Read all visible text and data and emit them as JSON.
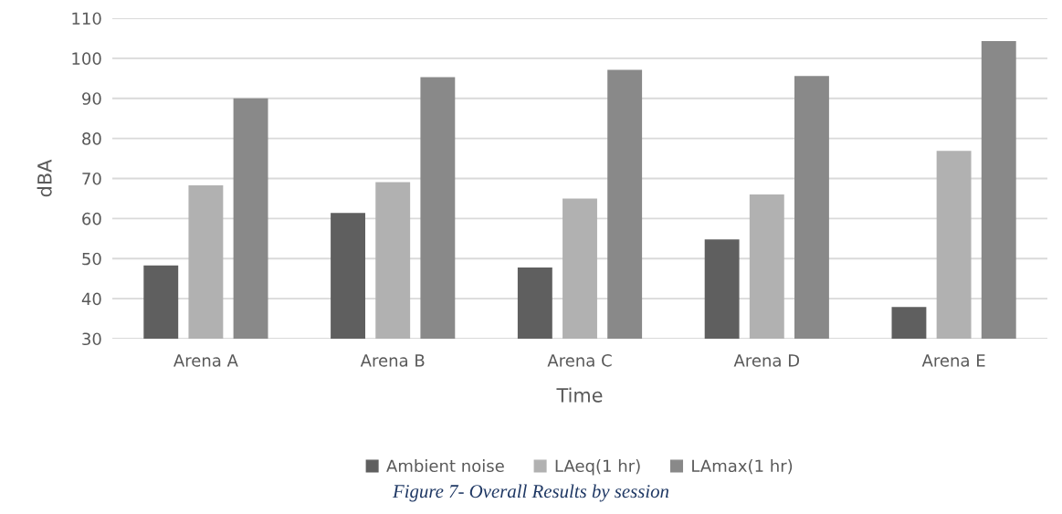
{
  "chart_data": {
    "type": "bar",
    "categories": [
      "Arena A",
      "Arena B",
      "Arena C",
      "Arena D",
      "Arena E"
    ],
    "series": [
      {
        "name": "Ambient noise",
        "color": "#5f5f5f",
        "values": [
          48.3,
          61.4,
          47.8,
          54.8,
          37.9
        ]
      },
      {
        "name": "LAeq(1 hr)",
        "color": "#b1b1b1",
        "values": [
          68.3,
          69.1,
          65.0,
          66.0,
          76.9
        ]
      },
      {
        "name": "LAmax(1 hr)",
        "color": "#898989",
        "values": [
          90.0,
          95.3,
          97.1,
          95.6,
          104.3
        ]
      }
    ],
    "xlabel": "Time",
    "ylabel": "dBA",
    "ylim": [
      30,
      110
    ],
    "yticks": [
      30,
      40,
      50,
      60,
      70,
      80,
      90,
      100,
      110
    ],
    "grid": "y",
    "legend": "bottom",
    "annotations": [
      "Figure 7- Overall Results by session"
    ]
  }
}
